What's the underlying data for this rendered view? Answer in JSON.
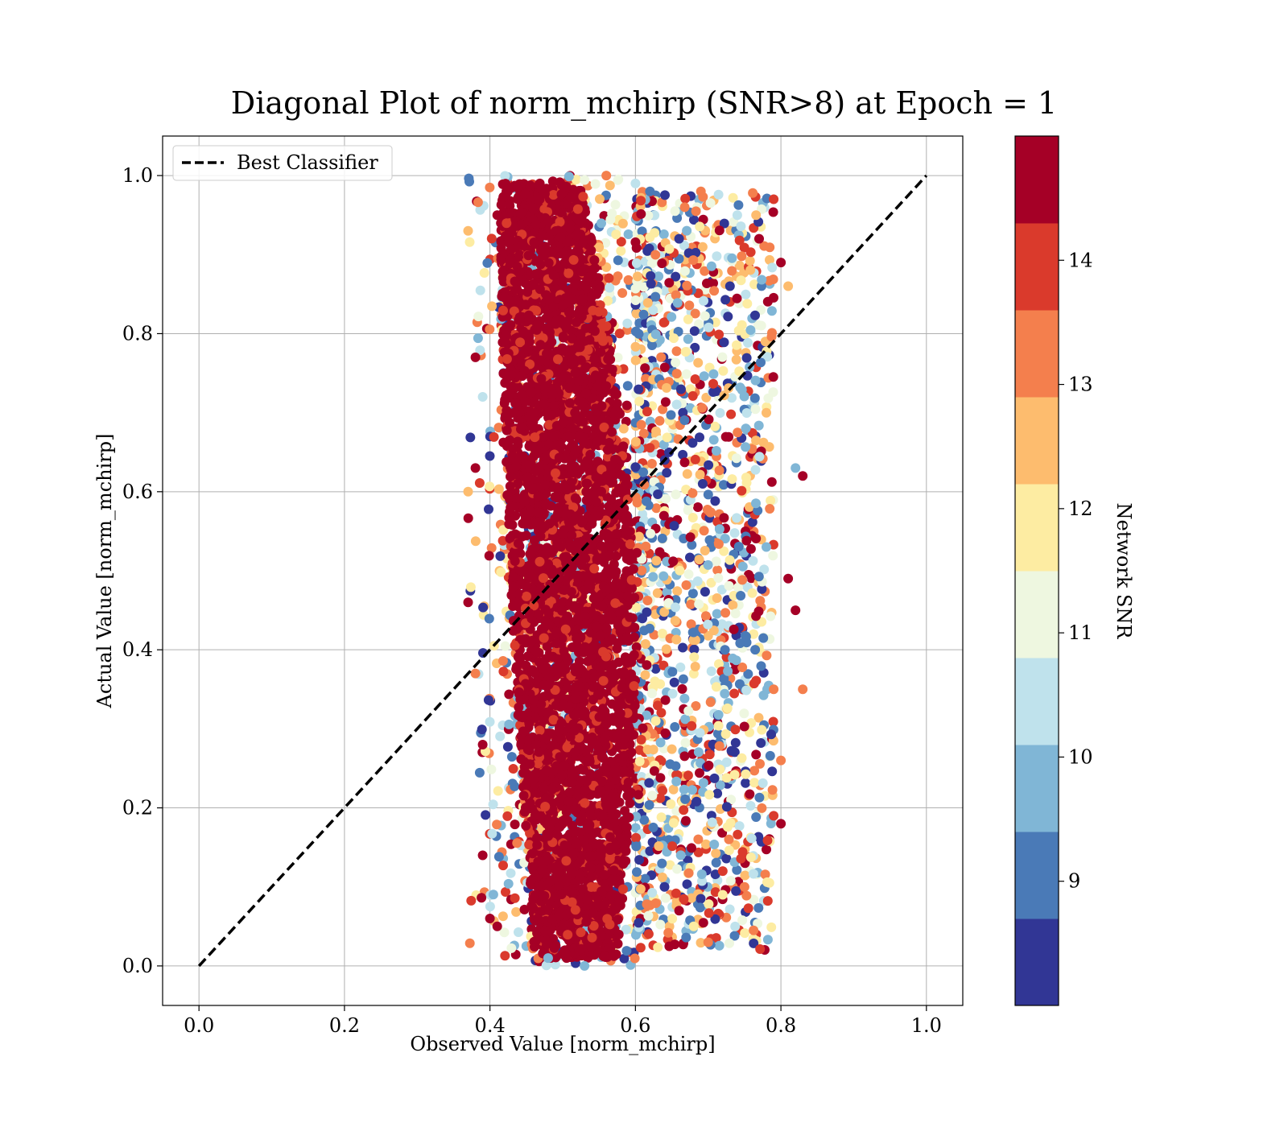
{
  "chart_data": {
    "type": "scatter",
    "title": "Diagonal Plot of norm_mchirp (SNR>8) at Epoch = 1",
    "xlabel": "Observed Value [norm_mchirp]",
    "ylabel": "Actual Value [norm_mchirp]",
    "xlim": [
      -0.05,
      1.05
    ],
    "ylim": [
      -0.05,
      1.05
    ],
    "xticks": [
      "0.0",
      "0.2",
      "0.4",
      "0.6",
      "0.8",
      "1.0"
    ],
    "yticks": [
      "0.0",
      "0.2",
      "0.4",
      "0.6",
      "0.8",
      "1.0"
    ],
    "grid": true,
    "legend": {
      "position": "upper-left",
      "entries": [
        "Best Classifier"
      ]
    },
    "reference_line": {
      "name": "Best Classifier",
      "style": "dashed",
      "color": "#000000",
      "x": [
        0.0,
        1.0
      ],
      "y": [
        0.0,
        1.0
      ]
    },
    "colorbar": {
      "label": "Network SNR",
      "ticks": [
        "9",
        "10",
        "11",
        "12",
        "13",
        "14"
      ],
      "range": [
        8,
        15
      ],
      "colors": [
        "#313695",
        "#4a7ab7",
        "#80b6d6",
        "#bfe2ec",
        "#eef7e0",
        "#fdeca2",
        "#fdbc6e",
        "#f47f4d",
        "#da3a2c",
        "#a50026"
      ]
    },
    "point_cloud": {
      "dense_core": {
        "x_range": [
          0.4,
          0.6
        ],
        "y_range": [
          0.0,
          1.0
        ],
        "dominant_snr": 15
      },
      "sparse_tail": {
        "x_range": [
          0.6,
          0.83
        ],
        "y_range": [
          0.0,
          1.0
        ]
      }
    },
    "points": [
      {
        "x": 0.41,
        "y": 0.95,
        "c": 15
      },
      {
        "x": 0.38,
        "y": 0.77,
        "c": 15
      },
      {
        "x": 0.37,
        "y": 0.93,
        "c": 12.5
      },
      {
        "x": 0.37,
        "y": 0.46,
        "c": 15
      },
      {
        "x": 0.38,
        "y": 0.37,
        "c": 13.5
      },
      {
        "x": 0.39,
        "y": 0.28,
        "c": 15
      },
      {
        "x": 0.39,
        "y": 0.14,
        "c": 15
      },
      {
        "x": 0.4,
        "y": 0.06,
        "c": 15
      },
      {
        "x": 0.41,
        "y": 0.05,
        "c": 15
      },
      {
        "x": 0.37,
        "y": 0.6,
        "c": 12.5
      },
      {
        "x": 0.38,
        "y": 0.63,
        "c": 15
      },
      {
        "x": 0.39,
        "y": 0.72,
        "c": 10.5
      },
      {
        "x": 0.83,
        "y": 0.62,
        "c": 15
      },
      {
        "x": 0.82,
        "y": 0.63,
        "c": 9.5
      },
      {
        "x": 0.83,
        "y": 0.35,
        "c": 13.5
      },
      {
        "x": 0.82,
        "y": 0.45,
        "c": 15
      },
      {
        "x": 0.81,
        "y": 0.49,
        "c": 15
      },
      {
        "x": 0.8,
        "y": 0.18,
        "c": 15
      },
      {
        "x": 0.79,
        "y": 0.97,
        "c": 14
      },
      {
        "x": 0.8,
        "y": 0.89,
        "c": 15
      },
      {
        "x": 0.81,
        "y": 0.86,
        "c": 12.5
      },
      {
        "x": 0.69,
        "y": 0.98,
        "c": 13.5
      },
      {
        "x": 0.7,
        "y": 0.03,
        "c": 13.5
      },
      {
        "x": 0.68,
        "y": 0.05,
        "c": 12
      },
      {
        "x": 0.64,
        "y": 0.1,
        "c": 8.5
      },
      {
        "x": 0.66,
        "y": 0.07,
        "c": 15
      },
      {
        "x": 0.75,
        "y": 0.1,
        "c": 13.5
      },
      {
        "x": 0.48,
        "y": 0.01,
        "c": 9.5
      },
      {
        "x": 0.53,
        "y": 0.0,
        "c": 10
      },
      {
        "x": 0.56,
        "y": 1.0,
        "c": 13.5
      },
      {
        "x": 0.6,
        "y": 0.99,
        "c": 10.5
      },
      {
        "x": 0.62,
        "y": 0.98,
        "c": 9
      },
      {
        "x": 0.66,
        "y": 0.92,
        "c": 8.5
      },
      {
        "x": 0.74,
        "y": 0.95,
        "c": 10.5
      },
      {
        "x": 0.77,
        "y": 0.92,
        "c": 15
      },
      {
        "x": 0.73,
        "y": 0.86,
        "c": 8.5
      },
      {
        "x": 0.78,
        "y": 0.53,
        "c": 10
      },
      {
        "x": 0.79,
        "y": 0.35,
        "c": 13.5
      },
      {
        "x": 0.8,
        "y": 0.26,
        "c": 13.5
      },
      {
        "x": 0.72,
        "y": 0.09,
        "c": 11.5
      },
      {
        "x": 0.79,
        "y": 0.19,
        "c": 14
      },
      {
        "x": 0.72,
        "y": 0.12,
        "c": 14
      }
    ]
  }
}
